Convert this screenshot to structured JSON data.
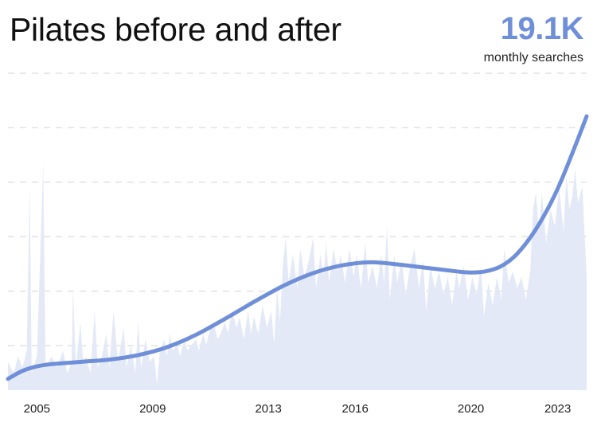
{
  "title": "Pilates before and after",
  "stat": {
    "value": "19.1K",
    "label": "monthly searches"
  },
  "colors": {
    "accent": "#6f8fd8",
    "area": "#e4e9f7",
    "grid": "#e2e2e2",
    "text": "#222222"
  },
  "chart_data": {
    "type": "area",
    "xlabel": "",
    "ylabel": "",
    "grid": true,
    "x_ticks": [
      "2005",
      "2009",
      "2013",
      "2016",
      "2020",
      "2023"
    ],
    "xlim": [
      2004.5,
      2024.5
    ],
    "ylim": [
      0,
      28
    ],
    "series": [
      {
        "kind": "monthly",
        "points": [
          [
            2004.5,
            2.5
          ],
          [
            2004.7,
            1.5
          ],
          [
            2004.85,
            3.0
          ],
          [
            2005.0,
            2.0
          ],
          [
            2005.15,
            3.5
          ],
          [
            2005.25,
            18.0
          ],
          [
            2005.32,
            1.5
          ],
          [
            2005.5,
            3.0
          ],
          [
            2005.72,
            20.0
          ],
          [
            2005.8,
            2.0
          ],
          [
            2006.0,
            3.0
          ],
          [
            2006.2,
            2.0
          ],
          [
            2006.4,
            3.5
          ],
          [
            2006.55,
            1.5
          ],
          [
            2006.7,
            2.5
          ],
          [
            2006.75,
            9.0
          ],
          [
            2006.85,
            2.0
          ],
          [
            2007.0,
            6.0
          ],
          [
            2007.1,
            2.5
          ],
          [
            2007.2,
            3.0
          ],
          [
            2007.35,
            1.5
          ],
          [
            2007.5,
            7.0
          ],
          [
            2007.6,
            2.0
          ],
          [
            2007.75,
            3.0
          ],
          [
            2007.9,
            5.0
          ],
          [
            2008.0,
            2.0
          ],
          [
            2008.15,
            7.0
          ],
          [
            2008.3,
            2.5
          ],
          [
            2008.5,
            5.5
          ],
          [
            2008.6,
            2.0
          ],
          [
            2008.75,
            4.0
          ],
          [
            2008.9,
            1.5
          ],
          [
            2009.0,
            6.0
          ],
          [
            2009.1,
            2.0
          ],
          [
            2009.25,
            4.5
          ],
          [
            2009.4,
            2.5
          ],
          [
            2009.55,
            3.0
          ],
          [
            2009.65,
            0.5
          ],
          [
            2009.75,
            3.5
          ],
          [
            2009.9,
            4.5
          ],
          [
            2010.0,
            3.0
          ],
          [
            2010.1,
            5.0
          ],
          [
            2010.2,
            3.5
          ],
          [
            2010.35,
            4.0
          ],
          [
            2010.45,
            3.0
          ],
          [
            2010.6,
            4.5
          ],
          [
            2010.7,
            3.5
          ],
          [
            2010.85,
            4.0
          ],
          [
            2011.0,
            4.5
          ],
          [
            2011.1,
            3.5
          ],
          [
            2011.25,
            5.0
          ],
          [
            2011.35,
            4.0
          ],
          [
            2011.5,
            5.5
          ],
          [
            2011.6,
            6.0
          ],
          [
            2011.75,
            4.5
          ],
          [
            2011.85,
            5.0
          ],
          [
            2012.0,
            6.0
          ],
          [
            2012.1,
            5.0
          ],
          [
            2012.25,
            7.0
          ],
          [
            2012.4,
            5.5
          ],
          [
            2012.5,
            6.5
          ],
          [
            2012.65,
            4.5
          ],
          [
            2012.8,
            7.0
          ],
          [
            2012.9,
            5.0
          ],
          [
            2013.0,
            6.5
          ],
          [
            2013.15,
            5.0
          ],
          [
            2013.3,
            7.5
          ],
          [
            2013.45,
            5.5
          ],
          [
            2013.6,
            7.0
          ],
          [
            2013.7,
            4.0
          ],
          [
            2013.8,
            9.0
          ],
          [
            2013.9,
            6.0
          ],
          [
            2014.0,
            11.0
          ],
          [
            2014.1,
            13.5
          ],
          [
            2014.2,
            9.5
          ],
          [
            2014.35,
            12.0
          ],
          [
            2014.5,
            9.0
          ],
          [
            2014.6,
            12.5
          ],
          [
            2014.75,
            10.0
          ],
          [
            2014.9,
            11.5
          ],
          [
            2015.05,
            13.5
          ],
          [
            2015.15,
            9.0
          ],
          [
            2015.3,
            12.0
          ],
          [
            2015.4,
            10.0
          ],
          [
            2015.5,
            13.0
          ],
          [
            2015.6,
            9.5
          ],
          [
            2015.75,
            12.5
          ],
          [
            2015.9,
            10.5
          ],
          [
            2016.0,
            12.0
          ],
          [
            2016.15,
            9.5
          ],
          [
            2016.3,
            12.5
          ],
          [
            2016.45,
            10.0
          ],
          [
            2016.55,
            12.0
          ],
          [
            2016.7,
            9.0
          ],
          [
            2016.85,
            13.0
          ],
          [
            2016.95,
            9.5
          ],
          [
            2017.1,
            11.0
          ],
          [
            2017.25,
            9.0
          ],
          [
            2017.4,
            12.0
          ],
          [
            2017.5,
            9.5
          ],
          [
            2017.6,
            14.5
          ],
          [
            2017.7,
            8.0
          ],
          [
            2017.85,
            12.0
          ],
          [
            2017.95,
            9.5
          ],
          [
            2018.1,
            11.5
          ],
          [
            2018.25,
            8.5
          ],
          [
            2018.4,
            11.0
          ],
          [
            2018.55,
            12.5
          ],
          [
            2018.7,
            9.0
          ],
          [
            2018.85,
            11.5
          ],
          [
            2018.95,
            7.0
          ],
          [
            2019.1,
            11.0
          ],
          [
            2019.25,
            9.0
          ],
          [
            2019.4,
            10.5
          ],
          [
            2019.55,
            8.5
          ],
          [
            2019.7,
            10.0
          ],
          [
            2019.85,
            7.5
          ],
          [
            2020.0,
            10.5
          ],
          [
            2020.1,
            9.0
          ],
          [
            2020.25,
            11.0
          ],
          [
            2020.4,
            8.0
          ],
          [
            2020.55,
            10.0
          ],
          [
            2020.7,
            8.5
          ],
          [
            2020.85,
            11.0
          ],
          [
            2020.95,
            6.5
          ],
          [
            2021.1,
            9.5
          ],
          [
            2021.25,
            7.5
          ],
          [
            2021.4,
            10.0
          ],
          [
            2021.55,
            8.0
          ],
          [
            2021.65,
            12.5
          ],
          [
            2021.8,
            9.5
          ],
          [
            2021.95,
            10.5
          ],
          [
            2022.1,
            9.0
          ],
          [
            2022.25,
            10.0
          ],
          [
            2022.4,
            8.0
          ],
          [
            2022.55,
            10.5
          ],
          [
            2022.65,
            16.0
          ],
          [
            2022.75,
            17.5
          ],
          [
            2022.85,
            14.0
          ],
          [
            2022.95,
            17.5
          ],
          [
            2023.1,
            13.0
          ],
          [
            2023.25,
            16.0
          ],
          [
            2023.4,
            14.5
          ],
          [
            2023.55,
            18.0
          ],
          [
            2023.7,
            14.0
          ],
          [
            2023.8,
            19.0
          ],
          [
            2023.9,
            16.0
          ],
          [
            2024.0,
            17.0
          ],
          [
            2024.1,
            19.5
          ],
          [
            2024.2,
            16.5
          ],
          [
            2024.35,
            18.0
          ],
          [
            2024.5,
            10.0
          ]
        ]
      },
      {
        "kind": "trend",
        "points": [
          [
            2004.5,
            1.0
          ],
          [
            2005.0,
            1.7
          ],
          [
            2005.5,
            2.1
          ],
          [
            2006.0,
            2.3
          ],
          [
            2007.0,
            2.5
          ],
          [
            2008.0,
            2.7
          ],
          [
            2009.0,
            3.1
          ],
          [
            2010.0,
            3.8
          ],
          [
            2011.0,
            4.9
          ],
          [
            2012.0,
            6.3
          ],
          [
            2013.0,
            7.8
          ],
          [
            2014.0,
            9.2
          ],
          [
            2015.0,
            10.3
          ],
          [
            2016.0,
            11.0
          ],
          [
            2017.0,
            11.3
          ],
          [
            2018.0,
            11.1
          ],
          [
            2019.0,
            10.8
          ],
          [
            2020.0,
            10.5
          ],
          [
            2020.5,
            10.4
          ],
          [
            2021.0,
            10.5
          ],
          [
            2021.5,
            10.9
          ],
          [
            2022.0,
            11.8
          ],
          [
            2022.5,
            13.3
          ],
          [
            2023.0,
            15.3
          ],
          [
            2023.5,
            17.8
          ],
          [
            2024.0,
            20.9
          ],
          [
            2024.5,
            24.2
          ]
        ]
      }
    ]
  }
}
